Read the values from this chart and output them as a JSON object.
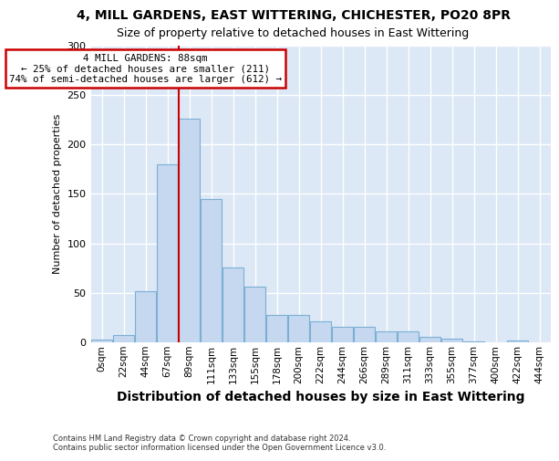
{
  "title1": "4, MILL GARDENS, EAST WITTERING, CHICHESTER, PO20 8PR",
  "title2": "Size of property relative to detached houses in East Wittering",
  "xlabel": "Distribution of detached houses by size in East Wittering",
  "ylabel": "Number of detached properties",
  "footnote": "Contains HM Land Registry data © Crown copyright and database right 2024.\nContains public sector information licensed under the Open Government Licence v3.0.",
  "bin_labels": [
    "0sqm",
    "22sqm",
    "44sqm",
    "67sqm",
    "89sqm",
    "111sqm",
    "133sqm",
    "155sqm",
    "178sqm",
    "200sqm",
    "222sqm",
    "244sqm",
    "266sqm",
    "289sqm",
    "311sqm",
    "333sqm",
    "355sqm",
    "377sqm",
    "400sqm",
    "422sqm",
    "444sqm"
  ],
  "bar_values": [
    3,
    7,
    52,
    180,
    226,
    145,
    76,
    56,
    28,
    28,
    21,
    16,
    16,
    11,
    11,
    6,
    4,
    1,
    0,
    2,
    0
  ],
  "bar_color": "#c5d8f0",
  "bar_edgecolor": "#7bafd4",
  "marker_bin_index": 4,
  "annotation_line1": "4 MILL GARDENS: 88sqm",
  "annotation_line2": "← 25% of detached houses are smaller (211)",
  "annotation_line3": "74% of semi-detached houses are larger (612) →",
  "annotation_box_facecolor": "#ffffff",
  "annotation_box_edgecolor": "#cc0000",
  "marker_line_color": "#cc0000",
  "fig_background": "#ffffff",
  "plot_background": "#dce8f5",
  "grid_color": "#ffffff",
  "ylim": [
    0,
    300
  ],
  "yticks": [
    0,
    50,
    100,
    150,
    200,
    250,
    300
  ],
  "title1_fontsize": 10,
  "title2_fontsize": 9,
  "xlabel_fontsize": 10,
  "ylabel_fontsize": 8,
  "tick_fontsize": 8,
  "xtick_fontsize": 7.5
}
